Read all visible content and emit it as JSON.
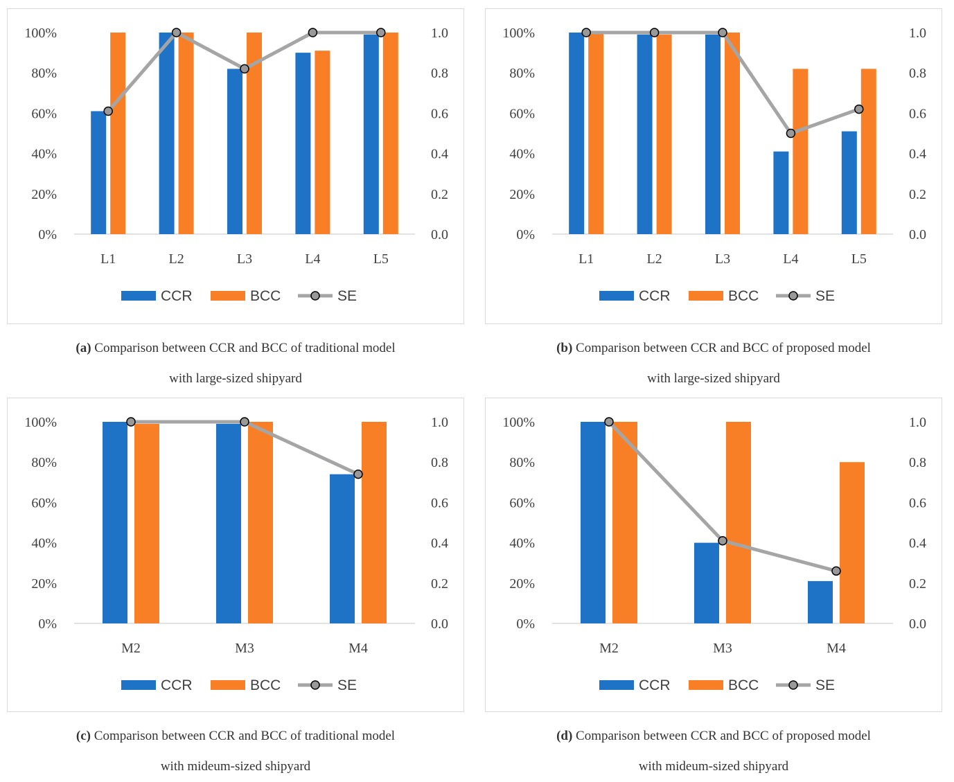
{
  "colors": {
    "ccr": "#1f73c6",
    "bcc": "#f97f27",
    "se": "#a5a5a5",
    "marker": "#999999",
    "grid": "#d9d9d9",
    "text": "#404040"
  },
  "chart_data": [
    {
      "id": "a",
      "type": "bar+line",
      "categories": [
        "L1",
        "L2",
        "L3",
        "L4",
        "L5"
      ],
      "series": [
        {
          "name": "CCR",
          "axis": "left",
          "values": [
            61,
            100,
            82,
            90,
            99
          ]
        },
        {
          "name": "BCC",
          "axis": "left",
          "values": [
            100,
            100,
            100,
            91,
            100
          ]
        },
        {
          "name": "SE",
          "axis": "right",
          "values": [
            0.61,
            1.0,
            0.82,
            1.0,
            1.0
          ]
        }
      ],
      "left_axis": {
        "ticks": [
          "0%",
          "20%",
          "40%",
          "60%",
          "80%",
          "100%"
        ],
        "range": [
          0,
          100
        ]
      },
      "right_axis": {
        "ticks": [
          "0.0",
          "0.2",
          "0.4",
          "0.6",
          "0.8",
          "1.0"
        ],
        "range": [
          0,
          1
        ]
      },
      "legend": [
        "CCR",
        "BCC",
        "SE"
      ],
      "caption_label": "(a)",
      "caption_line1": "Comparison between CCR and BCC of traditional model",
      "caption_line2": "with large-sized shipyard"
    },
    {
      "id": "b",
      "type": "bar+line",
      "categories": [
        "L1",
        "L2",
        "L3",
        "L4",
        "L5"
      ],
      "series": [
        {
          "name": "CCR",
          "axis": "left",
          "values": [
            100,
            99,
            99,
            41,
            51
          ]
        },
        {
          "name": "BCC",
          "axis": "left",
          "values": [
            100,
            99,
            100,
            82,
            82
          ]
        },
        {
          "name": "SE",
          "axis": "right",
          "values": [
            1.0,
            1.0,
            1.0,
            0.5,
            0.62
          ]
        }
      ],
      "left_axis": {
        "ticks": [
          "0%",
          "20%",
          "40%",
          "60%",
          "80%",
          "100%"
        ],
        "range": [
          0,
          100
        ]
      },
      "right_axis": {
        "ticks": [
          "0.0",
          "0.2",
          "0.4",
          "0.6",
          "0.8",
          "1.0"
        ],
        "range": [
          0,
          1
        ]
      },
      "legend": [
        "CCR",
        "BCC",
        "SE"
      ],
      "caption_label": "(b)",
      "caption_line1": "Comparison between CCR and BCC of proposed model",
      "caption_line2": "with large-sized shipyard"
    },
    {
      "id": "c",
      "type": "bar+line",
      "categories": [
        "M2",
        "M3",
        "M4"
      ],
      "series": [
        {
          "name": "CCR",
          "axis": "left",
          "values": [
            100,
            99,
            74
          ]
        },
        {
          "name": "BCC",
          "axis": "left",
          "values": [
            99,
            100,
            100
          ]
        },
        {
          "name": "SE",
          "axis": "right",
          "values": [
            1.0,
            1.0,
            0.74
          ]
        }
      ],
      "left_axis": {
        "ticks": [
          "0%",
          "20%",
          "40%",
          "60%",
          "80%",
          "100%"
        ],
        "range": [
          0,
          100
        ]
      },
      "right_axis": {
        "ticks": [
          "0.0",
          "0.2",
          "0.4",
          "0.6",
          "0.8",
          "1.0"
        ],
        "range": [
          0,
          1
        ]
      },
      "legend": [
        "CCR",
        "BCC",
        "SE"
      ],
      "caption_label": "(c)",
      "caption_line1": "Comparison between CCR and BCC of traditional model",
      "caption_line2": "with mideum-sized shipyard"
    },
    {
      "id": "d",
      "type": "bar+line",
      "categories": [
        "M2",
        "M3",
        "M4"
      ],
      "series": [
        {
          "name": "CCR",
          "axis": "left",
          "values": [
            100,
            40,
            21
          ]
        },
        {
          "name": "BCC",
          "axis": "left",
          "values": [
            100,
            100,
            80
          ]
        },
        {
          "name": "SE",
          "axis": "right",
          "values": [
            1.0,
            0.41,
            0.26
          ]
        }
      ],
      "left_axis": {
        "ticks": [
          "0%",
          "20%",
          "40%",
          "60%",
          "80%",
          "100%"
        ],
        "range": [
          0,
          100
        ]
      },
      "right_axis": {
        "ticks": [
          "0.0",
          "0.2",
          "0.4",
          "0.6",
          "0.8",
          "1.0"
        ],
        "range": [
          0,
          1
        ]
      },
      "legend": [
        "CCR",
        "BCC",
        "SE"
      ],
      "caption_label": "(d)",
      "caption_line1": "Comparison between CCR and BCC of proposed model",
      "caption_line2": "with mideum-sized shipyard"
    }
  ]
}
